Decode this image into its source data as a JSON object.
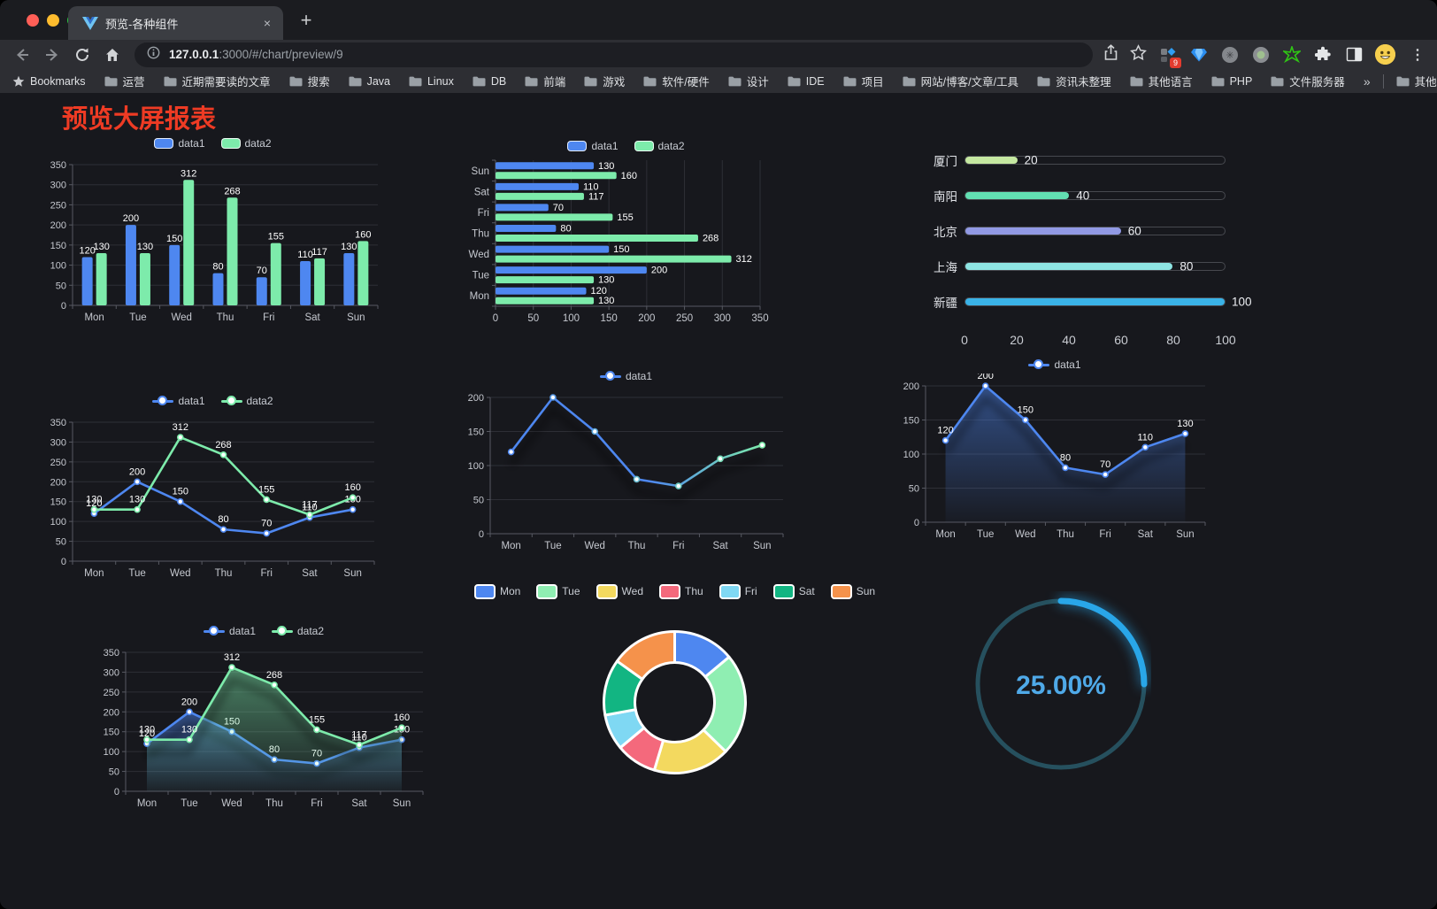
{
  "browser": {
    "tab": {
      "title": "预览-各种组件"
    },
    "url_host": "127.0.0.1",
    "url_rest": ":3000/#/chart/preview/9",
    "bookmarks_label": "Bookmarks",
    "bookmarks": [
      "运营",
      "近期需要读的文章",
      "搜索",
      "Java",
      "Linux",
      "DB",
      "前端",
      "游戏",
      "软件/硬件",
      "设计",
      "IDE",
      "项目",
      "网站/博客/文章/工具",
      "资讯未整理",
      "其他语言",
      "PHP",
      "文件服务器"
    ],
    "other_bookmarks": "其他书签",
    "extension_badge": "9",
    "icons": {
      "new_tab": "+",
      "tab_close": "×",
      "menu_dots": "⋮",
      "overflow_chevrons": "»"
    }
  },
  "page": {
    "title": "预览大屏报表",
    "title_color": "#ee3b24"
  },
  "colors": {
    "data1": "#4e87f0",
    "data2": "#7debab",
    "grid": "#2e2f36",
    "axis": "#575962",
    "tick_text": "#c5c8cf"
  },
  "chart_data": [
    {
      "id": "bar-vertical",
      "type": "bar",
      "orientation": "vertical",
      "categories": [
        "Mon",
        "Tue",
        "Wed",
        "Thu",
        "Fri",
        "Sat",
        "Sun"
      ],
      "series": [
        {
          "name": "data1",
          "color": "#4e87f0",
          "values": [
            120,
            200,
            150,
            80,
            70,
            110,
            130
          ]
        },
        {
          "name": "data2",
          "color": "#7debab",
          "values": [
            130,
            130,
            312,
            268,
            155,
            117,
            160
          ]
        }
      ],
      "ylim": [
        0,
        350
      ],
      "ytick": 50,
      "legend": "top",
      "grid": true
    },
    {
      "id": "bar-horizontal",
      "type": "bar",
      "orientation": "horizontal",
      "categories": [
        "Mon",
        "Tue",
        "Wed",
        "Thu",
        "Fri",
        "Sat",
        "Sun"
      ],
      "series": [
        {
          "name": "data1",
          "color": "#4e87f0",
          "values": [
            120,
            200,
            150,
            80,
            70,
            110,
            130
          ]
        },
        {
          "name": "data2",
          "color": "#7debab",
          "values": [
            130,
            130,
            312,
            268,
            155,
            117,
            160
          ]
        }
      ],
      "xlim": [
        0,
        350
      ],
      "xtick": 50,
      "legend": "top",
      "grid": true
    },
    {
      "id": "progress-bars",
      "type": "bar",
      "subtype": "progress",
      "categories": [
        "厦门",
        "南阳",
        "北京",
        "上海",
        "新疆"
      ],
      "values": [
        20,
        40,
        60,
        80,
        100
      ],
      "bar_colors": [
        "#c5e8a1",
        "#62dfb2",
        "#9199e4",
        "#8ee5e3",
        "#3ab3e8"
      ],
      "xlim": [
        0,
        100
      ],
      "xticks": [
        0,
        20,
        40,
        60,
        80,
        100
      ]
    },
    {
      "id": "line-two-series",
      "type": "line",
      "categories": [
        "Mon",
        "Tue",
        "Wed",
        "Thu",
        "Fri",
        "Sat",
        "Sun"
      ],
      "series": [
        {
          "name": "data1",
          "color": "#4e87f0",
          "values": [
            120,
            200,
            150,
            80,
            70,
            110,
            130
          ]
        },
        {
          "name": "data2",
          "color": "#7debab",
          "values": [
            130,
            130,
            312,
            268,
            155,
            117,
            160
          ]
        }
      ],
      "ylim": [
        0,
        350
      ],
      "ytick": 50,
      "labels": true,
      "legend": "top"
    },
    {
      "id": "line-gradient",
      "type": "line",
      "categories": [
        "Mon",
        "Tue",
        "Wed",
        "Thu",
        "Fri",
        "Sat",
        "Sun"
      ],
      "series": [
        {
          "name": "data1",
          "gradient": [
            "#4e87f0",
            "#7debab"
          ],
          "values": [
            120,
            200,
            150,
            80,
            70,
            110,
            130
          ],
          "shadow": true
        }
      ],
      "ylim": [
        0,
        200
      ],
      "ytick": 50,
      "labels": false,
      "legend": "top"
    },
    {
      "id": "line-area",
      "type": "line",
      "categories": [
        "Mon",
        "Tue",
        "Wed",
        "Thu",
        "Fri",
        "Sat",
        "Sun"
      ],
      "series": [
        {
          "name": "data1",
          "color": "#4e87f0",
          "values": [
            120,
            200,
            150,
            80,
            70,
            110,
            130
          ],
          "area": true,
          "shadow": true
        }
      ],
      "ylim": [
        0,
        200
      ],
      "ytick": 50,
      "labels": true,
      "legend": "top"
    },
    {
      "id": "line-area-two",
      "type": "line",
      "categories": [
        "Mon",
        "Tue",
        "Wed",
        "Thu",
        "Fri",
        "Sat",
        "Sun"
      ],
      "series": [
        {
          "name": "data1",
          "color": "#4e87f0",
          "values": [
            120,
            200,
            150,
            80,
            70,
            110,
            130
          ],
          "area": true,
          "shadow": true
        },
        {
          "name": "data2",
          "color": "#7debab",
          "values": [
            130,
            130,
            312,
            268,
            155,
            117,
            160
          ],
          "area": true,
          "shadow": true
        }
      ],
      "ylim": [
        0,
        350
      ],
      "ytick": 50,
      "labels": true,
      "legend": "top"
    },
    {
      "id": "donut",
      "type": "pie",
      "labels": [
        "Mon",
        "Tue",
        "Wed",
        "Thu",
        "Fri",
        "Sat",
        "Sun"
      ],
      "values": [
        120,
        200,
        150,
        80,
        70,
        110,
        130
      ],
      "colors": [
        "#4e87f0",
        "#8feeb2",
        "#f3d95f",
        "#f4697c",
        "#7fd8f3",
        "#12b582",
        "#f5924b"
      ]
    },
    {
      "id": "gauge",
      "type": "gauge",
      "value_percent": 25,
      "label": "25.00%",
      "progress_color": "#29a6e8",
      "track_color": "#26505e",
      "text_color": "#4fa9e8"
    }
  ]
}
